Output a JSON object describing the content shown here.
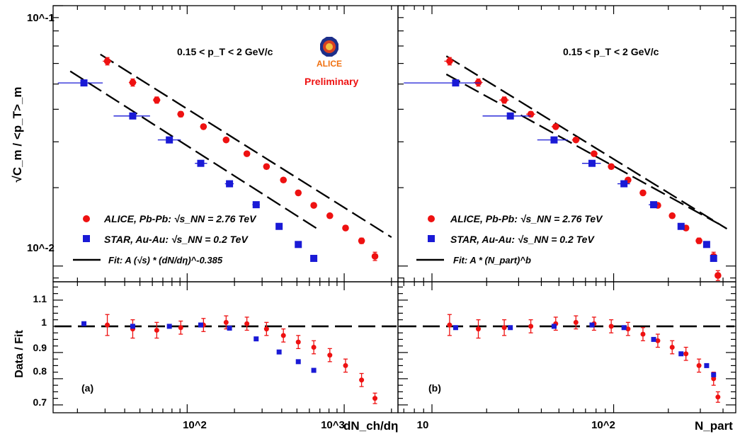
{
  "colors": {
    "alice": "#ee1111",
    "star": "#1a1ad6",
    "axis": "#000000",
    "alice_logo": "#f07010",
    "preliminary": "#ee1111"
  },
  "texts": {
    "ylabel_top": "√C_m / <p_T>_m",
    "ylabel_bottom": "Data / Fit",
    "pt_range_left": "0.15 < p_T < 2 GeV/c",
    "pt_range_right": "0.15 < p_T < 2 GeV/c",
    "alice_logo": "ALICE",
    "preliminary": "Preliminary",
    "xlabel_left": "dN_ch/dη",
    "xlabel_right": "N_part",
    "panel_a": "(a)",
    "panel_b": "(b)",
    "legend_left": {
      "alice": "ALICE, Pb-Pb: √s_NN = 2.76 TeV",
      "star": "STAR, Au-Au: √s_NN = 0.2 TeV",
      "fit": "Fit: A (√s) * (dN/dη)^-0.385"
    },
    "legend_right": {
      "alice": "ALICE, Pb-Pb: √s_NN = 2.76 TeV",
      "star": "STAR, Au-Au: √s_NN = 0.2 TeV",
      "fit": "Fit: A * (N_part)^b"
    },
    "ticks": {
      "top_y": [
        "10^-1",
        "10^-2"
      ],
      "bottom_y": [
        "0.7",
        "0.8",
        "0.9",
        "1",
        "1.1"
      ],
      "left_x": [
        "10^2",
        "10^3"
      ],
      "right_x": [
        "10",
        "10^2"
      ]
    }
  },
  "chart_data": [
    {
      "type": "scatter",
      "panel": "top-left",
      "xscale": "log",
      "yscale": "log",
      "xlim": [
        14,
        2200
      ],
      "ylim": [
        0.0087,
        0.1
      ],
      "series": [
        {
          "name": "ALICE, Pb-Pb: √s_NN = 2.76 TeV",
          "marker": "circle",
          "x": [
            31,
            45,
            64,
            91,
            127,
            177,
            240,
            320,
            410,
            510,
            640,
            810,
            1020,
            1290,
            1570
          ],
          "y": [
            0.0612,
            0.0507,
            0.0434,
            0.0383,
            0.0343,
            0.0305,
            0.027,
            0.0241,
            0.0214,
            0.0191,
            0.0171,
            0.0156,
            0.014,
            0.0125,
            0.0109
          ],
          "xerr": [
            2,
            2.5,
            3.5,
            4.5,
            6,
            8,
            10,
            13,
            16,
            20,
            25,
            30,
            35,
            45,
            55
          ],
          "yerr": [
            0.002,
            0.0016,
            0.0012,
            0.0009,
            0.0007,
            0.0006,
            0.0005,
            0.0005,
            0.0004,
            0.0004,
            0.0003,
            0.0003,
            0.0003,
            0.0003,
            0.0004
          ]
        },
        {
          "name": "STAR, Au-Au: √s_NN = 0.2 TeV",
          "marker": "square",
          "x": [
            22,
            45,
            77,
            122,
            186,
            275,
            385,
            510,
            640
          ],
          "y": [
            0.0505,
            0.0377,
            0.0305,
            0.0248,
            0.0207,
            0.0172,
            0.0142,
            0.0121,
            0.0107
          ],
          "xerr_lo": [
            7,
            11,
            12,
            10,
            12,
            15,
            18,
            22,
            25
          ],
          "xerr_hi": [
            7,
            13,
            14,
            12,
            12,
            15,
            18,
            22,
            25
          ],
          "yerr": [
            0.0003,
            0.0003,
            0.0003,
            0.0002,
            0.0002,
            0.0002,
            0.0002,
            0.0002,
            0.0002
          ]
        },
        {
          "name": "Fit ALICE",
          "type": "line",
          "dash": "long",
          "x": [
            28,
            2000
          ],
          "y": [
            0.065,
            0.0129
          ]
        },
        {
          "name": "Fit STAR",
          "type": "line",
          "dash": "long",
          "x": [
            18,
            700
          ],
          "y": [
            0.056,
            0.0137
          ]
        }
      ]
    },
    {
      "type": "scatter",
      "panel": "top-right",
      "xscale": "log",
      "yscale": "log",
      "xlim": [
        6.5,
        470
      ],
      "ylim": [
        0.0087,
        0.1
      ],
      "series": [
        {
          "name": "ALICE, Pb-Pb: √s_NN = 2.76 TeV",
          "marker": "circle",
          "x": [
            12.5,
            18,
            25,
            35,
            48,
            62,
            78,
            97,
            120,
            145,
            175,
            210,
            250,
            295,
            355,
            375
          ],
          "y": [
            0.0612,
            0.0507,
            0.0434,
            0.0383,
            0.0343,
            0.0305,
            0.027,
            0.0241,
            0.0214,
            0.0191,
            0.0171,
            0.0156,
            0.014,
            0.0125,
            0.0109,
            0.0092
          ],
          "xerr": [
            0.8,
            1,
            1.5,
            2,
            2.5,
            3,
            3.5,
            4,
            5,
            5,
            6,
            6,
            7,
            7,
            6,
            6
          ],
          "yerr": [
            0.002,
            0.0016,
            0.0012,
            0.0009,
            0.0007,
            0.0006,
            0.0005,
            0.0005,
            0.0004,
            0.0004,
            0.0003,
            0.0003,
            0.0003,
            0.0003,
            0.0004,
            0.0004
          ]
        },
        {
          "name": "STAR, Au-Au: √s_NN = 0.2 TeV",
          "marker": "square",
          "x": [
            13.5,
            27,
            47,
            76,
            114,
            166,
            235,
            325,
            355
          ],
          "y": [
            0.0505,
            0.0377,
            0.0305,
            0.0248,
            0.0207,
            0.0172,
            0.0142,
            0.0121,
            0.0107
          ],
          "xerr_lo": [
            6.5,
            8,
            9,
            9,
            9,
            10,
            8,
            8,
            8
          ],
          "xerr_hi": [
            5,
            8,
            9,
            9,
            9,
            10,
            8,
            8,
            8
          ],
          "yerr": [
            0.0003,
            0.0003,
            0.0003,
            0.0002,
            0.0002,
            0.0002,
            0.0002,
            0.0002,
            0.0002
          ]
        },
        {
          "name": "Fit ALICE",
          "type": "line",
          "dash": "long",
          "x": [
            12,
            420
          ],
          "y": [
            0.064,
            0.0139
          ]
        },
        {
          "name": "Fit STAR",
          "type": "line",
          "dash": "long",
          "x": [
            12,
            380
          ],
          "y": [
            0.0545,
            0.0145
          ]
        }
      ]
    },
    {
      "type": "scatter",
      "panel": "bottom-left",
      "xscale": "log",
      "yscale": "linear",
      "xlim": [
        14,
        2200
      ],
      "ylim": [
        0.67,
        1.17
      ],
      "reference_line": 1.0,
      "series": [
        {
          "name": "ALICE ratio",
          "marker": "circle",
          "x": [
            31,
            45,
            64,
            91,
            127,
            177,
            240,
            320,
            410,
            510,
            640,
            810,
            1020,
            1290,
            1570
          ],
          "y": [
            1.005,
            0.99,
            0.985,
            0.995,
            1.005,
            1.015,
            1.01,
            0.99,
            0.965,
            0.94,
            0.92,
            0.89,
            0.85,
            0.795,
            0.725
          ],
          "yerr": [
            0.04,
            0.035,
            0.03,
            0.025,
            0.025,
            0.025,
            0.025,
            0.025,
            0.025,
            0.025,
            0.025,
            0.025,
            0.025,
            0.025,
            0.02
          ]
        },
        {
          "name": "STAR ratio",
          "marker": "square",
          "x": [
            22,
            45,
            77,
            122,
            186,
            275,
            385,
            510,
            640
          ],
          "y": [
            1.01,
            1.0,
            1.0,
            1.005,
            0.993,
            0.952,
            0.902,
            0.865,
            0.832
          ],
          "yerr": [
            0.008,
            0.008,
            0.008,
            0.008,
            0.008,
            0.008,
            0.008,
            0.008,
            0.008
          ]
        }
      ]
    },
    {
      "type": "scatter",
      "panel": "bottom-right",
      "xscale": "log",
      "yscale": "linear",
      "xlim": [
        6.5,
        470
      ],
      "ylim": [
        0.67,
        1.17
      ],
      "reference_line": 1.0,
      "series": [
        {
          "name": "ALICE ratio",
          "marker": "circle",
          "x": [
            12.5,
            18,
            25,
            35,
            48,
            62,
            78,
            97,
            120,
            145,
            175,
            210,
            250,
            295,
            355,
            375
          ],
          "y": [
            1.005,
            0.99,
            0.995,
            1.0,
            1.01,
            1.015,
            1.01,
            1.0,
            0.99,
            0.97,
            0.945,
            0.92,
            0.895,
            0.85,
            0.8,
            0.73
          ],
          "yerr": [
            0.04,
            0.035,
            0.03,
            0.025,
            0.025,
            0.025,
            0.025,
            0.025,
            0.025,
            0.025,
            0.025,
            0.025,
            0.025,
            0.025,
            0.025,
            0.02
          ]
        },
        {
          "name": "STAR ratio",
          "marker": "square",
          "x": [
            13.5,
            27,
            47,
            76,
            114,
            166,
            235,
            325,
            355
          ],
          "y": [
            0.995,
            0.995,
            1.0,
            1.005,
            0.995,
            0.95,
            0.895,
            0.85,
            0.815
          ],
          "yerr": [
            0.008,
            0.008,
            0.008,
            0.008,
            0.008,
            0.008,
            0.008,
            0.008,
            0.008
          ]
        }
      ]
    }
  ]
}
